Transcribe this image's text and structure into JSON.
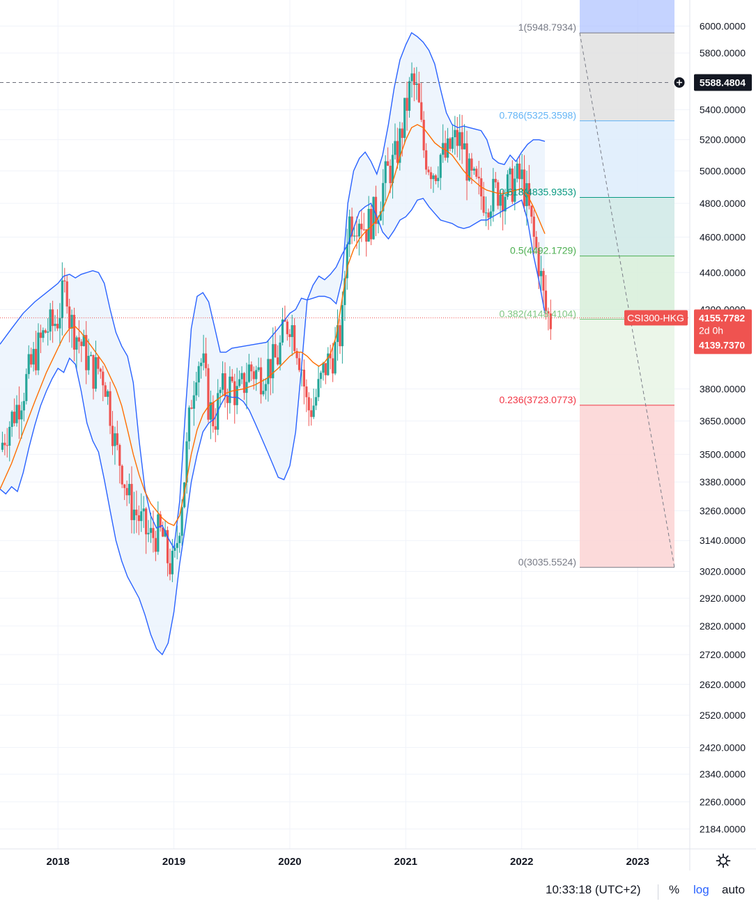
{
  "chart_data": {
    "type": "candlestick",
    "symbol": "CSI300-HKG",
    "scale": "log",
    "x_labels": [
      "2018",
      "2019",
      "2020",
      "2021",
      "2022",
      "2023"
    ],
    "y_ticks": [
      2184,
      2260,
      2340,
      2420,
      2520,
      2620,
      2720,
      2820,
      2920,
      3020,
      3140,
      3260,
      3380,
      3500,
      3650,
      3800,
      4200,
      4400,
      4600,
      4800,
      5000,
      5200,
      5400,
      5800,
      6000
    ],
    "y_tick_labels": [
      "2184.0000",
      "2260.0000",
      "2340.0000",
      "2420.0000",
      "2520.0000",
      "2620.0000",
      "2720.0000",
      "2820.0000",
      "2920.0000",
      "3020.0000",
      "3140.0000",
      "3260.0000",
      "3380.0000",
      "3500.0000",
      "3650.0000",
      "3800.0000",
      "4200.0000",
      "4400.0000",
      "4600.0000",
      "4800.0000",
      "5000.0000",
      "5200.0000",
      "5400.0000",
      "5800.0000",
      "6000.0000"
    ],
    "ylim": [
      2130,
      6200
    ],
    "xlim": [
      2017.5,
      2023.45
    ],
    "crosshair": {
      "price": "5588.4804",
      "value": 5588.4804
    },
    "last_price": {
      "symbol": "CSI300-HKG",
      "price": "4155.7782",
      "countdown": "2d 0h",
      "close": "4139.7370",
      "value": 4155.7782
    },
    "fibonacci": [
      {
        "level": 1,
        "value": 5948.7934,
        "label": "1(5948.7934)",
        "color": "#787b86"
      },
      {
        "level": 0.786,
        "value": 5325.3598,
        "label": "0.786(5325.3598)",
        "color": "#64b5f6"
      },
      {
        "level": 0.618,
        "value": 4835.9353,
        "label": "0.618(4835.9353)",
        "color": "#089981"
      },
      {
        "level": 0.5,
        "value": 4492.1729,
        "label": "0.5(4492.1729)",
        "color": "#4caf50"
      },
      {
        "level": 0.382,
        "value": 4148.4104,
        "label": "0.382(4148.4104)",
        "color": "#81c784"
      },
      {
        "level": 0.236,
        "value": 3723.0773,
        "label": "0.236(3723.0773)",
        "color": "#f23645"
      },
      {
        "level": 0,
        "value": 3035.5524,
        "label": "0(3035.5524)",
        "color": "#787b86"
      }
    ],
    "fib_zone_colors": [
      "#b2c4ff",
      "#e0e0e0",
      "#ddecfb",
      "#cfe9e6",
      "#d7efd9",
      "#e7f4e5",
      "#fcd3d3"
    ],
    "colors": {
      "up": "#26a69a",
      "down": "#ef5350",
      "bb_band": "#2962ff",
      "bb_basis": "#ff6d00",
      "bb_fill": "#eaf2fc"
    },
    "close_path": [
      [
        2017.5,
        3520
      ],
      [
        2017.55,
        3600
      ],
      [
        2017.6,
        3660
      ],
      [
        2017.65,
        3720
      ],
      [
        2017.7,
        3790
      ],
      [
        2017.75,
        3880
      ],
      [
        2017.8,
        3960
      ],
      [
        2017.85,
        4030
      ],
      [
        2017.9,
        4100
      ],
      [
        2017.95,
        4110
      ],
      [
        2018.0,
        4160
      ],
      [
        2018.05,
        4290
      ],
      [
        2018.08,
        4320
      ],
      [
        2018.1,
        4150
      ],
      [
        2018.15,
        4080
      ],
      [
        2018.2,
        4020
      ],
      [
        2018.25,
        3950
      ],
      [
        2018.3,
        3880
      ],
      [
        2018.35,
        3900
      ],
      [
        2018.4,
        3860
      ],
      [
        2018.45,
        3700
      ],
      [
        2018.5,
        3520
      ],
      [
        2018.55,
        3450
      ],
      [
        2018.6,
        3320
      ],
      [
        2018.65,
        3270
      ],
      [
        2018.7,
        3230
      ],
      [
        2018.75,
        3180
      ],
      [
        2018.8,
        3150
      ],
      [
        2018.85,
        3170
      ],
      [
        2018.9,
        3160
      ],
      [
        2018.95,
        3060
      ],
      [
        2019.0,
        3030
      ],
      [
        2019.05,
        3230
      ],
      [
        2019.1,
        3450
      ],
      [
        2019.15,
        3750
      ],
      [
        2019.2,
        3950
      ],
      [
        2019.25,
        3920
      ],
      [
        2019.3,
        3720
      ],
      [
        2019.35,
        3650
      ],
      [
        2019.4,
        3780
      ],
      [
        2019.45,
        3800
      ],
      [
        2019.5,
        3820
      ],
      [
        2019.55,
        3760
      ],
      [
        2019.6,
        3820
      ],
      [
        2019.65,
        3900
      ],
      [
        2019.7,
        3880
      ],
      [
        2019.75,
        3870
      ],
      [
        2019.8,
        3910
      ],
      [
        2019.85,
        3920
      ],
      [
        2019.9,
        3960
      ],
      [
        2019.95,
        4090
      ],
      [
        2020.0,
        4150
      ],
      [
        2020.05,
        4050
      ],
      [
        2020.1,
        3920
      ],
      [
        2020.15,
        3700
      ],
      [
        2020.2,
        3720
      ],
      [
        2020.25,
        3800
      ],
      [
        2020.3,
        3900
      ],
      [
        2020.35,
        3950
      ],
      [
        2020.4,
        4000
      ],
      [
        2020.45,
        4100
      ],
      [
        2020.5,
        4700
      ],
      [
        2020.55,
        4700
      ],
      [
        2020.6,
        4740
      ],
      [
        2020.65,
        4650
      ],
      [
        2020.7,
        4700
      ],
      [
        2020.75,
        4750
      ],
      [
        2020.8,
        4900
      ],
      [
        2020.85,
        5000
      ],
      [
        2020.9,
        5050
      ],
      [
        2020.95,
        5200
      ],
      [
        2021.0,
        5400
      ],
      [
        2021.05,
        5600
      ],
      [
        2021.1,
        5500
      ],
      [
        2021.15,
        5150
      ],
      [
        2021.2,
        5050
      ],
      [
        2021.25,
        5000
      ],
      [
        2021.3,
        5100
      ],
      [
        2021.35,
        5080
      ],
      [
        2021.4,
        5180
      ],
      [
        2021.45,
        5200
      ],
      [
        2021.5,
        5150
      ],
      [
        2021.55,
        4950
      ],
      [
        2021.6,
        4900
      ],
      [
        2021.65,
        4850
      ],
      [
        2021.7,
        4830
      ],
      [
        2021.75,
        4850
      ],
      [
        2021.8,
        4880
      ],
      [
        2021.85,
        4870
      ],
      [
        2021.9,
        4900
      ],
      [
        2021.95,
        4940
      ],
      [
        2022.0,
        4950
      ],
      [
        2022.05,
        4800
      ],
      [
        2022.1,
        4600
      ],
      [
        2022.15,
        4450
      ],
      [
        2022.2,
        4200
      ],
      [
        2022.25,
        4140
      ]
    ],
    "bb_upper": [
      [
        2017.5,
        4020
      ],
      [
        2017.6,
        4100
      ],
      [
        2017.7,
        4180
      ],
      [
        2017.8,
        4240
      ],
      [
        2017.9,
        4290
      ],
      [
        2018.0,
        4340
      ],
      [
        2018.05,
        4380
      ],
      [
        2018.1,
        4390
      ],
      [
        2018.15,
        4370
      ],
      [
        2018.2,
        4390
      ],
      [
        2018.3,
        4410
      ],
      [
        2018.35,
        4400
      ],
      [
        2018.4,
        4340
      ],
      [
        2018.45,
        4200
      ],
      [
        2018.5,
        4080
      ],
      [
        2018.55,
        4010
      ],
      [
        2018.6,
        3960
      ],
      [
        2018.65,
        3830
      ],
      [
        2018.7,
        3560
      ],
      [
        2018.75,
        3350
      ],
      [
        2018.8,
        3240
      ],
      [
        2018.85,
        3190
      ],
      [
        2018.9,
        3200
      ],
      [
        2018.95,
        3150
      ],
      [
        2019.0,
        3110
      ],
      [
        2019.05,
        3300
      ],
      [
        2019.1,
        3700
      ],
      [
        2019.15,
        4100
      ],
      [
        2019.2,
        4270
      ],
      [
        2019.25,
        4290
      ],
      [
        2019.3,
        4240
      ],
      [
        2019.35,
        4110
      ],
      [
        2019.4,
        3980
      ],
      [
        2019.45,
        3980
      ],
      [
        2019.5,
        4000
      ],
      [
        2019.6,
        4010
      ],
      [
        2019.7,
        4020
      ],
      [
        2019.8,
        4030
      ],
      [
        2019.9,
        4100
      ],
      [
        2020.0,
        4180
      ],
      [
        2020.05,
        4200
      ],
      [
        2020.1,
        4260
      ],
      [
        2020.15,
        4250
      ],
      [
        2020.2,
        4260
      ],
      [
        2020.25,
        4270
      ],
      [
        2020.3,
        4270
      ],
      [
        2020.35,
        4260
      ],
      [
        2020.4,
        4230
      ],
      [
        2020.45,
        4360
      ],
      [
        2020.5,
        4800
      ],
      [
        2020.55,
        5000
      ],
      [
        2020.6,
        5080
      ],
      [
        2020.65,
        5120
      ],
      [
        2020.7,
        5060
      ],
      [
        2020.75,
        4980
      ],
      [
        2020.8,
        5100
      ],
      [
        2020.85,
        5300
      ],
      [
        2020.9,
        5550
      ],
      [
        2020.95,
        5750
      ],
      [
        2021.0,
        5860
      ],
      [
        2021.05,
        5950
      ],
      [
        2021.1,
        5920
      ],
      [
        2021.15,
        5880
      ],
      [
        2021.2,
        5820
      ],
      [
        2021.25,
        5720
      ],
      [
        2021.3,
        5540
      ],
      [
        2021.35,
        5380
      ],
      [
        2021.4,
        5300
      ],
      [
        2021.45,
        5280
      ],
      [
        2021.5,
        5290
      ],
      [
        2021.55,
        5280
      ],
      [
        2021.6,
        5270
      ],
      [
        2021.65,
        5260
      ],
      [
        2021.7,
        5200
      ],
      [
        2021.75,
        5080
      ],
      [
        2021.8,
        5050
      ],
      [
        2021.85,
        5040
      ],
      [
        2021.9,
        5100
      ],
      [
        2021.95,
        5060
      ],
      [
        2022.0,
        5120
      ],
      [
        2022.05,
        5170
      ],
      [
        2022.1,
        5200
      ],
      [
        2022.15,
        5200
      ],
      [
        2022.2,
        5190
      ]
    ],
    "bb_lower": [
      [
        2017.5,
        3350
      ],
      [
        2017.55,
        3330
      ],
      [
        2017.6,
        3360
      ],
      [
        2017.65,
        3340
      ],
      [
        2017.7,
        3420
      ],
      [
        2017.75,
        3530
      ],
      [
        2017.8,
        3630
      ],
      [
        2017.85,
        3720
      ],
      [
        2017.9,
        3790
      ],
      [
        2017.95,
        3850
      ],
      [
        2018.0,
        3900
      ],
      [
        2018.05,
        3880
      ],
      [
        2018.1,
        3950
      ],
      [
        2018.15,
        3920
      ],
      [
        2018.2,
        3790
      ],
      [
        2018.25,
        3640
      ],
      [
        2018.3,
        3560
      ],
      [
        2018.35,
        3510
      ],
      [
        2018.4,
        3390
      ],
      [
        2018.45,
        3260
      ],
      [
        2018.5,
        3140
      ],
      [
        2018.55,
        3060
      ],
      [
        2018.6,
        3000
      ],
      [
        2018.65,
        2960
      ],
      [
        2018.7,
        2920
      ],
      [
        2018.75,
        2860
      ],
      [
        2018.8,
        2790
      ],
      [
        2018.85,
        2740
      ],
      [
        2018.9,
        2720
      ],
      [
        2018.95,
        2760
      ],
      [
        2019.0,
        2870
      ],
      [
        2019.05,
        3050
      ],
      [
        2019.1,
        3200
      ],
      [
        2019.15,
        3380
      ],
      [
        2019.2,
        3500
      ],
      [
        2019.25,
        3600
      ],
      [
        2019.3,
        3640
      ],
      [
        2019.35,
        3660
      ],
      [
        2019.4,
        3720
      ],
      [
        2019.45,
        3770
      ],
      [
        2019.5,
        3760
      ],
      [
        2019.55,
        3760
      ],
      [
        2019.6,
        3740
      ],
      [
        2019.65,
        3700
      ],
      [
        2019.7,
        3640
      ],
      [
        2019.75,
        3580
      ],
      [
        2019.8,
        3520
      ],
      [
        2019.85,
        3460
      ],
      [
        2019.9,
        3400
      ],
      [
        2019.95,
        3390
      ],
      [
        2020.0,
        3450
      ],
      [
        2020.05,
        3600
      ],
      [
        2020.1,
        3900
      ],
      [
        2020.15,
        4250
      ],
      [
        2020.2,
        4330
      ],
      [
        2020.25,
        4380
      ],
      [
        2020.3,
        4360
      ],
      [
        2020.35,
        4390
      ],
      [
        2020.4,
        4430
      ],
      [
        2020.45,
        4500
      ],
      [
        2020.5,
        4560
      ],
      [
        2020.55,
        4650
      ],
      [
        2020.6,
        4750
      ],
      [
        2020.65,
        4780
      ],
      [
        2020.7,
        4800
      ],
      [
        2020.75,
        4720
      ],
      [
        2020.8,
        4630
      ],
      [
        2020.85,
        4590
      ],
      [
        2020.9,
        4640
      ],
      [
        2020.95,
        4700
      ],
      [
        2021.0,
        4720
      ],
      [
        2021.05,
        4760
      ],
      [
        2021.1,
        4820
      ],
      [
        2021.15,
        4830
      ],
      [
        2021.2,
        4780
      ],
      [
        2021.25,
        4740
      ],
      [
        2021.3,
        4700
      ],
      [
        2021.35,
        4690
      ],
      [
        2021.4,
        4680
      ],
      [
        2021.45,
        4660
      ],
      [
        2021.5,
        4650
      ],
      [
        2021.55,
        4660
      ],
      [
        2021.6,
        4680
      ],
      [
        2021.65,
        4700
      ],
      [
        2021.7,
        4700
      ],
      [
        2021.75,
        4720
      ],
      [
        2021.8,
        4740
      ],
      [
        2021.85,
        4760
      ],
      [
        2021.9,
        4780
      ],
      [
        2021.95,
        4800
      ],
      [
        2022.0,
        4820
      ],
      [
        2022.05,
        4700
      ],
      [
        2022.1,
        4500
      ],
      [
        2022.15,
        4350
      ],
      [
        2022.2,
        4180
      ]
    ],
    "bb_basis": [
      [
        2017.5,
        3350
      ],
      [
        2017.6,
        3460
      ],
      [
        2017.7,
        3600
      ],
      [
        2017.8,
        3740
      ],
      [
        2017.9,
        3880
      ],
      [
        2018.0,
        4000
      ],
      [
        2018.05,
        4060
      ],
      [
        2018.1,
        4100
      ],
      [
        2018.15,
        4110
      ],
      [
        2018.2,
        4080
      ],
      [
        2018.3,
        4000
      ],
      [
        2018.4,
        3920
      ],
      [
        2018.5,
        3800
      ],
      [
        2018.55,
        3720
      ],
      [
        2018.6,
        3610
      ],
      [
        2018.65,
        3500
      ],
      [
        2018.7,
        3410
      ],
      [
        2018.75,
        3340
      ],
      [
        2018.8,
        3290
      ],
      [
        2018.85,
        3260
      ],
      [
        2018.9,
        3230
      ],
      [
        2018.95,
        3210
      ],
      [
        2019.0,
        3200
      ],
      [
        2019.05,
        3240
      ],
      [
        2019.1,
        3360
      ],
      [
        2019.15,
        3500
      ],
      [
        2019.2,
        3610
      ],
      [
        2019.25,
        3680
      ],
      [
        2019.3,
        3720
      ],
      [
        2019.35,
        3740
      ],
      [
        2019.4,
        3760
      ],
      [
        2019.45,
        3780
      ],
      [
        2019.5,
        3790
      ],
      [
        2019.6,
        3800
      ],
      [
        2019.7,
        3820
      ],
      [
        2019.8,
        3850
      ],
      [
        2019.9,
        3900
      ],
      [
        2020.0,
        3960
      ],
      [
        2020.05,
        3980
      ],
      [
        2020.1,
        3980
      ],
      [
        2020.15,
        3960
      ],
      [
        2020.2,
        3930
      ],
      [
        2020.25,
        3910
      ],
      [
        2020.3,
        3930
      ],
      [
        2020.35,
        3970
      ],
      [
        2020.4,
        4060
      ],
      [
        2020.45,
        4250
      ],
      [
        2020.5,
        4440
      ],
      [
        2020.55,
        4530
      ],
      [
        2020.6,
        4590
      ],
      [
        2020.65,
        4630
      ],
      [
        2020.7,
        4660
      ],
      [
        2020.75,
        4700
      ],
      [
        2020.8,
        4760
      ],
      [
        2020.85,
        4850
      ],
      [
        2020.9,
        4960
      ],
      [
        2020.95,
        5090
      ],
      [
        2021.0,
        5200
      ],
      [
        2021.05,
        5280
      ],
      [
        2021.1,
        5300
      ],
      [
        2021.15,
        5280
      ],
      [
        2021.2,
        5230
      ],
      [
        2021.25,
        5180
      ],
      [
        2021.3,
        5150
      ],
      [
        2021.35,
        5130
      ],
      [
        2021.4,
        5100
      ],
      [
        2021.45,
        5050
      ],
      [
        2021.5,
        5000
      ],
      [
        2021.55,
        4960
      ],
      [
        2021.6,
        4930
      ],
      [
        2021.65,
        4900
      ],
      [
        2021.7,
        4880
      ],
      [
        2021.75,
        4870
      ],
      [
        2021.8,
        4860
      ],
      [
        2021.85,
        4860
      ],
      [
        2021.9,
        4870
      ],
      [
        2021.95,
        4880
      ],
      [
        2022.0,
        4890
      ],
      [
        2022.05,
        4850
      ],
      [
        2022.1,
        4780
      ],
      [
        2022.15,
        4700
      ],
      [
        2022.2,
        4620
      ]
    ]
  },
  "time_readout": "10:33:18 (UTC+2)",
  "toolbar": {
    "percent_label": "%",
    "log_label": "log",
    "auto_label": "auto"
  },
  "icons": {
    "settings": "gear-icon",
    "add_alert": "plus-circle-icon"
  }
}
